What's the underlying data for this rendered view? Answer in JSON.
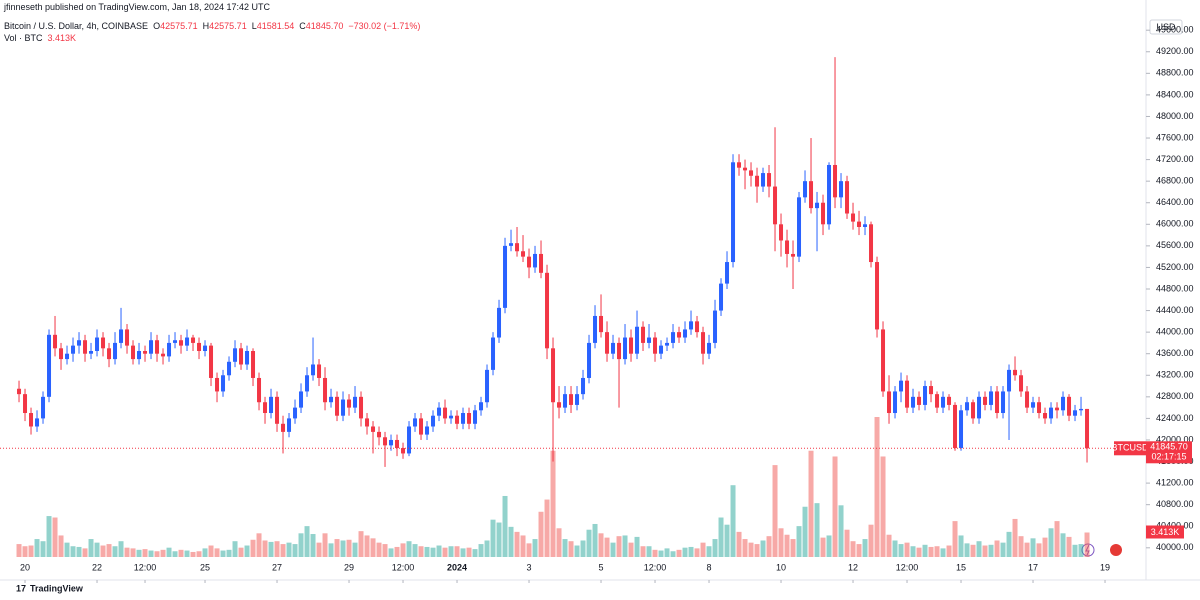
{
  "header": {
    "publisher": "jfinneseth published on TradingView.com, Jan 18, 2024 17:42 UTC"
  },
  "chart_data": {
    "type": "candlestick",
    "title": "Bitcoin / U.S. Dollar, 4h, COINBASE",
    "ohlc_labels": [
      "O",
      "H",
      "L",
      "C"
    ],
    "ohlc_values": [
      "42575.71",
      "42575.71",
      "41581.54",
      "41845.70"
    ],
    "change": "−730.02 (−1.71%)",
    "up_color": "#2962ff",
    "down_color": "#f23645",
    "ohlc": [
      [
        42950,
        43100,
        42700,
        42850
      ],
      [
        42850,
        42950,
        42350,
        42500
      ],
      [
        42500,
        42600,
        42100,
        42250
      ],
      [
        42250,
        42550,
        42150,
        42400
      ],
      [
        42400,
        42900,
        42300,
        42800
      ],
      [
        42800,
        44050,
        42700,
        43950
      ],
      [
        43950,
        44300,
        43550,
        43700
      ],
      [
        43700,
        43800,
        43300,
        43500
      ],
      [
        43500,
        43750,
        43400,
        43600
      ],
      [
        43600,
        43900,
        43450,
        43750
      ],
      [
        43750,
        44000,
        43600,
        43850
      ],
      [
        43850,
        43950,
        43450,
        43600
      ],
      [
        43600,
        43800,
        43500,
        43650
      ],
      [
        43650,
        44050,
        43550,
        43900
      ],
      [
        43900,
        44000,
        43550,
        43700
      ],
      [
        43700,
        43800,
        43350,
        43500
      ],
      [
        43500,
        44000,
        43400,
        43800
      ],
      [
        43800,
        44450,
        43700,
        44050
      ],
      [
        44050,
        44150,
        43600,
        43750
      ],
      [
        43750,
        43850,
        43400,
        43500
      ],
      [
        43500,
        43800,
        43400,
        43650
      ],
      [
        43650,
        43750,
        43450,
        43600
      ],
      [
        43600,
        44000,
        43500,
        43850
      ],
      [
        43850,
        43950,
        43450,
        43600
      ],
      [
        43600,
        43700,
        43400,
        43550
      ],
      [
        43550,
        43950,
        43450,
        43800
      ],
      [
        43800,
        44000,
        43700,
        43850
      ],
      [
        43850,
        43950,
        43600,
        43750
      ],
      [
        43750,
        44050,
        43650,
        43900
      ],
      [
        43900,
        43950,
        43650,
        43800
      ],
      [
        43800,
        43900,
        43500,
        43650
      ],
      [
        43650,
        43850,
        43550,
        43750
      ],
      [
        43750,
        43800,
        43000,
        43150
      ],
      [
        43150,
        43250,
        42700,
        42900
      ],
      [
        42900,
        43300,
        42800,
        43200
      ],
      [
        43200,
        43550,
        43100,
        43450
      ],
      [
        43450,
        43850,
        43350,
        43700
      ],
      [
        43700,
        43800,
        43300,
        43400
      ],
      [
        43400,
        43750,
        43300,
        43650
      ],
      [
        43650,
        43700,
        43000,
        43150
      ],
      [
        43150,
        43250,
        42550,
        42700
      ],
      [
        42700,
        42800,
        42300,
        42500
      ],
      [
        42500,
        42950,
        42400,
        42800
      ],
      [
        42800,
        42900,
        42150,
        42300
      ],
      [
        42300,
        42450,
        41750,
        42150
      ],
      [
        42150,
        42500,
        42050,
        42400
      ],
      [
        42400,
        42750,
        42300,
        42600
      ],
      [
        42600,
        43050,
        42500,
        42900
      ],
      [
        42900,
        43350,
        42800,
        43200
      ],
      [
        43200,
        43900,
        43100,
        43400
      ],
      [
        43400,
        43500,
        43000,
        43150
      ],
      [
        43150,
        43350,
        42550,
        42700
      ],
      [
        42700,
        42950,
        42600,
        42800
      ],
      [
        42800,
        42900,
        42350,
        42450
      ],
      [
        42450,
        42900,
        42350,
        42750
      ],
      [
        42750,
        42850,
        42450,
        42600
      ],
      [
        42600,
        43000,
        42500,
        42800
      ],
      [
        42800,
        42900,
        42250,
        42400
      ],
      [
        42400,
        42500,
        42100,
        42250
      ],
      [
        42250,
        42350,
        41750,
        42150
      ],
      [
        42150,
        42250,
        41900,
        42050
      ],
      [
        42050,
        42150,
        41500,
        41900
      ],
      [
        41900,
        42100,
        41800,
        42000
      ],
      [
        42000,
        42100,
        41700,
        41850
      ],
      [
        41850,
        41950,
        41650,
        41750
      ],
      [
        41750,
        42350,
        41700,
        42250
      ],
      [
        42250,
        42500,
        42150,
        42400
      ],
      [
        42400,
        42500,
        42000,
        42100
      ],
      [
        42100,
        42350,
        42000,
        42250
      ],
      [
        42250,
        42550,
        42150,
        42450
      ],
      [
        42450,
        42700,
        42350,
        42600
      ],
      [
        42600,
        42750,
        42300,
        42400
      ],
      [
        42400,
        42550,
        42300,
        42450
      ],
      [
        42450,
        42550,
        42200,
        42300
      ],
      [
        42300,
        42600,
        42200,
        42500
      ],
      [
        42500,
        42600,
        42200,
        42300
      ],
      [
        42300,
        42650,
        42200,
        42550
      ],
      [
        42550,
        42800,
        42450,
        42700
      ],
      [
        42700,
        43400,
        42600,
        43300
      ],
      [
        43300,
        44000,
        43200,
        43900
      ],
      [
        43900,
        44600,
        43800,
        44450
      ],
      [
        44450,
        45750,
        44350,
        45600
      ],
      [
        45600,
        45900,
        45500,
        45650
      ],
      [
        45650,
        45950,
        45400,
        45500
      ],
      [
        45500,
        45800,
        45300,
        45400
      ],
      [
        45400,
        45550,
        45000,
        45200
      ],
      [
        45200,
        45600,
        45100,
        45450
      ],
      [
        45450,
        45700,
        45000,
        45100
      ],
      [
        45100,
        45250,
        43500,
        43700
      ],
      [
        43700,
        43900,
        41600,
        42700
      ],
      [
        42700,
        43000,
        42400,
        42600
      ],
      [
        42600,
        43000,
        42500,
        42850
      ],
      [
        42850,
        43000,
        42500,
        42650
      ],
      [
        42650,
        43000,
        42550,
        42850
      ],
      [
        42850,
        43300,
        42750,
        43150
      ],
      [
        43150,
        43950,
        43050,
        43800
      ],
      [
        43800,
        44500,
        43700,
        44300
      ],
      [
        44300,
        44700,
        43900,
        44000
      ],
      [
        44000,
        44200,
        43450,
        43600
      ],
      [
        43600,
        43950,
        43500,
        43800
      ],
      [
        43800,
        43900,
        42600,
        43500
      ],
      [
        43500,
        44150,
        43400,
        43900
      ],
      [
        43900,
        44050,
        43450,
        43600
      ],
      [
        43600,
        44400,
        43500,
        44100
      ],
      [
        44100,
        44200,
        43650,
        43800
      ],
      [
        43800,
        44150,
        43700,
        43900
      ],
      [
        43900,
        44000,
        43450,
        43600
      ],
      [
        43600,
        43850,
        43500,
        43750
      ],
      [
        43750,
        43900,
        43650,
        43800
      ],
      [
        43800,
        44150,
        43700,
        44000
      ],
      [
        44000,
        44100,
        43800,
        43900
      ],
      [
        43900,
        44200,
        43800,
        44050
      ],
      [
        44050,
        44400,
        43950,
        44200
      ],
      [
        44200,
        44300,
        43900,
        44000
      ],
      [
        44000,
        44100,
        43400,
        43600
      ],
      [
        43600,
        43950,
        43500,
        43800
      ],
      [
        43800,
        44600,
        43700,
        44400
      ],
      [
        44400,
        45000,
        44300,
        44900
      ],
      [
        44900,
        45500,
        44800,
        45300
      ],
      [
        45300,
        47300,
        45200,
        47150
      ],
      [
        47150,
        47300,
        46900,
        47050
      ],
      [
        47050,
        47200,
        46650,
        47000
      ],
      [
        47000,
        47150,
        46700,
        46900
      ],
      [
        46900,
        47050,
        46400,
        46700
      ],
      [
        46700,
        47050,
        46600,
        46950
      ],
      [
        46950,
        47100,
        46500,
        46700
      ],
      [
        46700,
        47800,
        45500,
        46000
      ],
      [
        46000,
        46200,
        45400,
        45700
      ],
      [
        45700,
        45900,
        45200,
        45450
      ],
      [
        45450,
        45700,
        44800,
        45400
      ],
      [
        45400,
        46600,
        45300,
        46500
      ],
      [
        46500,
        47000,
        46400,
        46800
      ],
      [
        46800,
        47600,
        46200,
        46300
      ],
      [
        46300,
        46600,
        45500,
        46400
      ],
      [
        46400,
        46550,
        45800,
        46000
      ],
      [
        46000,
        47150,
        45900,
        47100
      ],
      [
        47100,
        49100,
        46300,
        46500
      ],
      [
        46500,
        46950,
        46300,
        46800
      ],
      [
        46800,
        46900,
        46100,
        46200
      ],
      [
        46200,
        46400,
        45900,
        46050
      ],
      [
        46050,
        46250,
        45800,
        45950
      ],
      [
        45950,
        46150,
        45800,
        46000
      ],
      [
        46000,
        46050,
        45200,
        45300
      ],
      [
        45300,
        45400,
        43900,
        44050
      ],
      [
        44050,
        44200,
        42800,
        42900
      ],
      [
        42900,
        43200,
        42300,
        42500
      ],
      [
        42500,
        43000,
        42400,
        42900
      ],
      [
        42900,
        43250,
        42700,
        43100
      ],
      [
        43100,
        43200,
        42500,
        42600
      ],
      [
        42600,
        42950,
        42500,
        42800
      ],
      [
        42800,
        42900,
        42550,
        42650
      ],
      [
        42650,
        43100,
        42550,
        43000
      ],
      [
        43000,
        43100,
        42700,
        42850
      ],
      [
        42850,
        42900,
        42500,
        42600
      ],
      [
        42600,
        42900,
        42500,
        42800
      ],
      [
        42800,
        42850,
        42550,
        42650
      ],
      [
        42650,
        42700,
        41800,
        41850
      ],
      [
        41850,
        42650,
        41800,
        42550
      ],
      [
        42550,
        42800,
        42450,
        42700
      ],
      [
        42700,
        42750,
        42300,
        42400
      ],
      [
        42400,
        42900,
        42300,
        42800
      ],
      [
        42800,
        42900,
        42550,
        42650
      ],
      [
        42650,
        43000,
        42550,
        42900
      ],
      [
        42900,
        43000,
        42400,
        42500
      ],
      [
        42500,
        43000,
        42400,
        42900
      ],
      [
        42900,
        43400,
        42000,
        43300
      ],
      [
        43300,
        43550,
        43100,
        43200
      ],
      [
        43200,
        43300,
        42800,
        42900
      ],
      [
        42900,
        43000,
        42500,
        42600
      ],
      [
        42600,
        42800,
        42500,
        42700
      ],
      [
        42700,
        42800,
        42400,
        42500
      ],
      [
        42500,
        42600,
        42300,
        42400
      ],
      [
        42400,
        42700,
        42300,
        42600
      ],
      [
        42600,
        42700,
        42400,
        42550
      ],
      [
        42550,
        42900,
        42450,
        42800
      ],
      [
        42800,
        42850,
        42350,
        42450
      ],
      [
        42450,
        42650,
        42350,
        42550
      ],
      [
        42550,
        42800,
        42450,
        42575.71
      ],
      [
        42575.71,
        42575.71,
        41581.54,
        41845.7
      ]
    ],
    "volume": {
      "name": "Vol · BTC",
      "last_label": "3.413K",
      "up_color": "rgba(38,166,154,0.5)",
      "down_color": "rgba(239,83,80,0.5)",
      "values": [
        1800,
        1500,
        1600,
        2500,
        2200,
        5700,
        5500,
        3000,
        2000,
        1500,
        1400,
        1200,
        2500,
        2000,
        1600,
        1800,
        1500,
        2200,
        1300,
        1200,
        1000,
        1100,
        900,
        800,
        1000,
        1300,
        800,
        1000,
        900,
        700,
        800,
        1200,
        1600,
        1200,
        900,
        1000,
        2200,
        1300,
        1600,
        2400,
        3300,
        2300,
        2100,
        2200,
        1800,
        2000,
        1800,
        3300,
        4300,
        3200,
        2000,
        3300,
        1900,
        2500,
        2300,
        2400,
        2000,
        3600,
        3000,
        2600,
        2000,
        1800,
        1200,
        1400,
        1900,
        2200,
        1800,
        1500,
        1400,
        1300,
        1600,
        1300,
        1500,
        1500,
        1200,
        1300,
        1100,
        1800,
        2300,
        5200,
        4800,
        8500,
        4200,
        3500,
        3000,
        1900,
        2500,
        6300,
        8000,
        14800,
        4000,
        2500,
        2200,
        1600,
        2300,
        3800,
        4600,
        3300,
        2700,
        2000,
        2900,
        3000,
        2000,
        2800,
        1500,
        1500,
        1000,
        900,
        1200,
        800,
        1000,
        1300,
        1400,
        1200,
        2000,
        1500,
        2500,
        5500,
        4500,
        10000,
        3500,
        2500,
        2000,
        1800,
        2300,
        2900,
        12800,
        4000,
        3100,
        2500,
        4300,
        7000,
        14800,
        7500,
        2700,
        3000,
        14000,
        7200,
        3800,
        2200,
        1800,
        2500,
        4500,
        19500,
        14000,
        3100,
        2300,
        1800,
        2000,
        1500,
        1300,
        1700,
        1400,
        1500,
        1200,
        1600,
        5000,
        3000,
        1900,
        1700,
        2200,
        1600,
        1700,
        2300,
        2000,
        3500,
        5300,
        2900,
        2000,
        2600,
        1900,
        2700,
        4000,
        5000,
        3300,
        2800,
        1700,
        1800,
        3413
      ]
    },
    "ylim": [
      39440,
      50160
    ],
    "yticks": [
      {
        "value": 40000,
        "label": "40000.00"
      },
      {
        "value": 40400,
        "label": "40400.00"
      },
      {
        "value": 40800,
        "label": "40800.00"
      },
      {
        "value": 41200,
        "label": "41200.00"
      },
      {
        "value": 41600,
        "label": "41600.00"
      },
      {
        "value": 42000,
        "label": "42000.00"
      },
      {
        "value": 42400,
        "label": "42400.00"
      },
      {
        "value": 42800,
        "label": "42800.00"
      },
      {
        "value": 43200,
        "label": "43200.00"
      },
      {
        "value": 43600,
        "label": "43600.00"
      },
      {
        "value": 44000,
        "label": "44000.00"
      },
      {
        "value": 44400,
        "label": "44400.00"
      },
      {
        "value": 44800,
        "label": "44800.00"
      },
      {
        "value": 45200,
        "label": "45200.00"
      },
      {
        "value": 45600,
        "label": "45600.00"
      },
      {
        "value": 46000,
        "label": "46000.00"
      },
      {
        "value": 46400,
        "label": "46400.00"
      },
      {
        "value": 46800,
        "label": "46800.00"
      },
      {
        "value": 47200,
        "label": "47200.00"
      },
      {
        "value": 47600,
        "label": "47600.00"
      },
      {
        "value": 48000,
        "label": "48000.00"
      },
      {
        "value": 48400,
        "label": "48400.00"
      },
      {
        "value": 48800,
        "label": "48800.00"
      },
      {
        "value": 49200,
        "label": "49200.00"
      },
      {
        "value": 49600,
        "label": "49600.00"
      }
    ],
    "xlim": [
      -3.17,
      187.83
    ],
    "xticks": [
      {
        "value": 1,
        "label": "20"
      },
      {
        "value": 13,
        "label": "22"
      },
      {
        "value": 21,
        "label": "12:00"
      },
      {
        "value": 31,
        "label": "25"
      },
      {
        "value": 43,
        "label": "27"
      },
      {
        "value": 55,
        "label": "29"
      },
      {
        "value": 64,
        "label": "12:00"
      },
      {
        "value": 73,
        "label": "2024"
      },
      {
        "value": 85,
        "label": "3"
      },
      {
        "value": 97,
        "label": "5"
      },
      {
        "value": 106,
        "label": "12:00"
      },
      {
        "value": 115,
        "label": "8"
      },
      {
        "value": 127,
        "label": "10"
      },
      {
        "value": 139,
        "label": "12"
      },
      {
        "value": 148,
        "label": "12:00"
      },
      {
        "value": 157,
        "label": "15"
      },
      {
        "value": 169,
        "label": "17"
      },
      {
        "value": 181,
        "label": "19"
      }
    ],
    "currency": "USD",
    "symbol": "BTCUSD",
    "last_price_label": "41845.70",
    "countdown": "02:17:15",
    "grid": false
  },
  "footer": {
    "brand": "TradingView"
  }
}
